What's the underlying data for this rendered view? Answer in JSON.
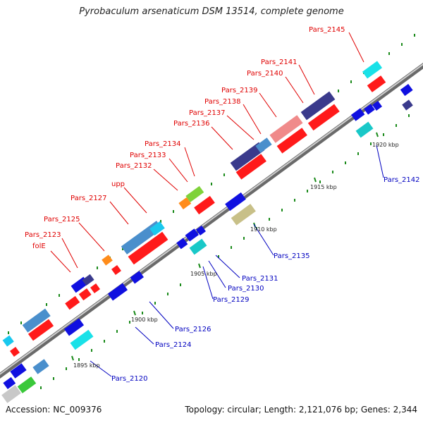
{
  "title": "Pyrobaculum arsenaticum DSM 13514, complete genome",
  "footer": {
    "accession": "Accession: NC_009376",
    "topology": "Topology: circular; Length: 2,121,076 bp; Genes: 2,344"
  },
  "kbp_labels": [
    "1895 kbp",
    "1900 kbp",
    "1905 kbp",
    "1910 kbp",
    "1915 kbp",
    "1920 kbp"
  ],
  "gene_labels_top": [
    "Pars_2123",
    "folE",
    "Pars_2125",
    "Pars_2127",
    "upp",
    "Pars_2132",
    "Pars_2133",
    "Pars_2134",
    "Pars_2136",
    "Pars_2137",
    "Pars_2138",
    "Pars_2139",
    "Pars_2140",
    "Pars_2141",
    "Pars_2145"
  ],
  "gene_labels_bottom": [
    "Pars_2120",
    "Pars_2124",
    "Pars_2126",
    "Pars_2129",
    "Pars_2130",
    "Pars_2131",
    "Pars_2135",
    "Pars_2142"
  ],
  "colors": {
    "forward_label": "#e00000",
    "reverse_label": "#0000c0",
    "backbone": "#9a9a9a",
    "tick": "#1a8a1a"
  }
}
